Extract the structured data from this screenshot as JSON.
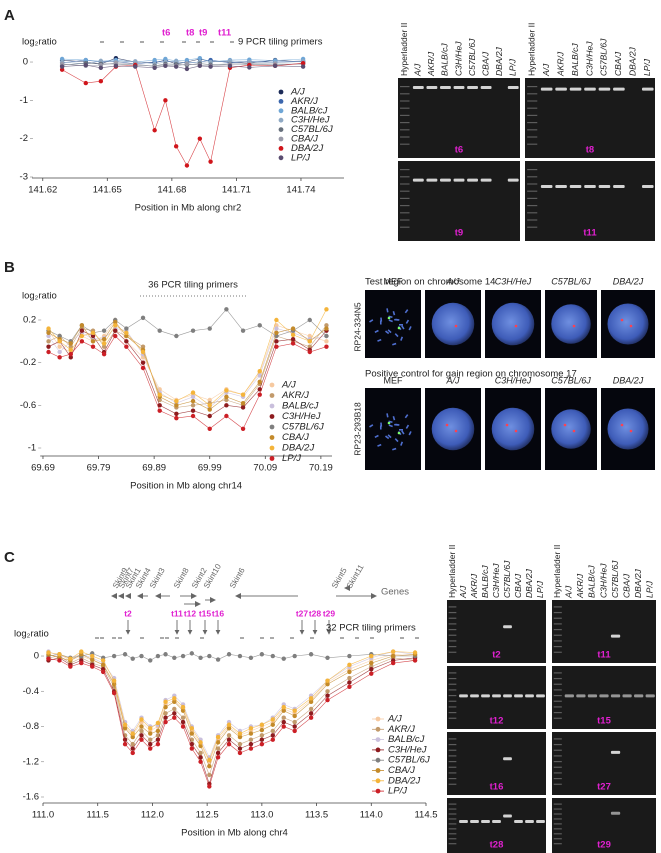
{
  "panels": [
    "A",
    "B",
    "C"
  ],
  "chart_data": [
    {
      "type": "line",
      "x_label": "Position in Mb along chr2",
      "y_label": "log₂ratio",
      "primer_label": "9 PCR tiling primers",
      "primer_names": [
        "t6",
        "t8",
        "t9",
        "t11"
      ],
      "x": [
        141.629,
        141.64,
        141.647,
        141.654,
        141.663,
        141.672,
        141.677,
        141.682,
        141.687,
        141.693,
        141.698,
        141.707,
        141.716,
        141.728,
        141.741
      ],
      "series": [
        {
          "name": "A/J",
          "color": "#1b2a57",
          "values": [
            0.05,
            0.0,
            -0.05,
            0.1,
            0.0,
            -0.02,
            0.05,
            -0.05,
            0.0,
            0.08,
            0.02,
            0.0,
            -0.03,
            0.05,
            0.0
          ]
        },
        {
          "name": "AKR/J",
          "color": "#3b66ad",
          "values": [
            -0.02,
            0.05,
            0.0,
            0.02,
            -0.05,
            0.0,
            0.03,
            0.0,
            -0.02,
            0.0,
            0.05,
            -0.02,
            0.02,
            0.0,
            0.03
          ]
        },
        {
          "name": "BALB/cJ",
          "color": "#6fa6d6",
          "values": [
            0.08,
            0.05,
            0.02,
            0.05,
            0.0,
            0.05,
            0.08,
            0.03,
            0.05,
            0.1,
            0.0,
            0.05,
            0.06,
            0.04,
            0.08
          ]
        },
        {
          "name": "C3H/HeJ",
          "color": "#8fa9c4",
          "values": [
            0.0,
            -0.05,
            0.03,
            0.0,
            0.02,
            -0.05,
            0.0,
            0.02,
            -0.03,
            0.0,
            0.0,
            0.03,
            0.0,
            -0.02,
            0.02
          ]
        },
        {
          "name": "C57BL/6J",
          "color": "#67707c",
          "values": [
            -0.08,
            -0.03,
            -0.05,
            -0.05,
            -0.08,
            -0.1,
            -0.05,
            -0.06,
            -0.08,
            -0.04,
            -0.07,
            -0.05,
            -0.06,
            -0.08,
            -0.04
          ]
        },
        {
          "name": "CBA/J",
          "color": "#9a9aa8",
          "values": [
            -0.05,
            -0.1,
            -0.08,
            -0.02,
            -0.05,
            -0.12,
            -0.08,
            -0.1,
            -0.05,
            -0.08,
            -0.1,
            -0.06,
            -0.04,
            -0.05,
            -0.06
          ]
        },
        {
          "name": "DBA/2J",
          "color": "#d0151b",
          "values": [
            -0.2,
            -0.55,
            -0.5,
            -0.12,
            -0.08,
            -1.78,
            -1.0,
            -2.2,
            -2.7,
            -2.0,
            -2.6,
            -0.15,
            -0.08,
            -0.1,
            -0.03
          ]
        },
        {
          "name": "LP/J",
          "color": "#5a4d70",
          "values": [
            -0.12,
            -0.08,
            -0.15,
            -0.1,
            -0.12,
            -0.15,
            -0.1,
            -0.12,
            -0.18,
            -0.1,
            -0.12,
            -0.1,
            -0.14,
            -0.1,
            -0.12
          ]
        }
      ],
      "xlim": [
        141.615,
        141.76
      ],
      "xticks": [
        141.62,
        141.65,
        141.68,
        141.71,
        141.74
      ],
      "ylim": [
        -3,
        0.4
      ],
      "yticks": [
        0,
        -1,
        -2,
        -3
      ],
      "grid": false,
      "legend": "right"
    },
    {
      "type": "line",
      "x_label": "Position in Mb along chr14",
      "y_label": "log₂ratio",
      "primer_label": "36 PCR tiling primers",
      "x": [
        69.7,
        69.72,
        69.74,
        69.76,
        69.78,
        69.8,
        69.82,
        69.84,
        69.87,
        69.9,
        69.93,
        69.96,
        69.99,
        70.02,
        70.05,
        70.08,
        70.11,
        70.14,
        70.17,
        70.2
      ],
      "series": [
        {
          "name": "A/J",
          "color": "#f6c9a0",
          "values": [
            0.1,
            -0.05,
            -0.1,
            0.05,
            0.0,
            0.05,
            0.2,
            0.0,
            -0.15,
            -0.45,
            -0.55,
            -0.5,
            -0.55,
            -0.45,
            -0.5,
            -0.3,
            0.15,
            0.1,
            0.05,
            0.0
          ]
        },
        {
          "name": "AKR/J",
          "color": "#c29a6b",
          "values": [
            0.0,
            0.05,
            -0.05,
            0.12,
            0.1,
            -0.05,
            0.1,
            0.05,
            -0.05,
            -0.55,
            -0.62,
            -0.6,
            -0.58,
            -0.55,
            -0.6,
            -0.4,
            0.05,
            0.0,
            -0.05,
            0.15
          ]
        },
        {
          "name": "BALB/cJ",
          "color": "#c9bfdc",
          "values": [
            0.05,
            -0.1,
            0.0,
            0.08,
            0.02,
            0.03,
            0.12,
            0.1,
            -0.12,
            -0.48,
            -0.58,
            -0.52,
            -0.62,
            -0.48,
            -0.52,
            -0.32,
            0.12,
            0.08,
            0.02,
            0.05
          ]
        },
        {
          "name": "C3H/HeJ",
          "color": "#8e1b1e",
          "values": [
            -0.05,
            0.0,
            -0.15,
            0.1,
            0.05,
            -0.1,
            0.1,
            0.0,
            -0.2,
            -0.6,
            -0.68,
            -0.65,
            -0.7,
            -0.6,
            -0.62,
            -0.45,
            0.0,
            0.02,
            -0.08,
            0.1
          ]
        },
        {
          "name": "C57BL/6J",
          "color": "#7f7f7f",
          "values": [
            0.1,
            0.05,
            0.0,
            0.15,
            0.08,
            0.1,
            0.2,
            0.12,
            0.22,
            0.1,
            0.05,
            0.1,
            0.12,
            0.3,
            0.1,
            0.15,
            0.05,
            0.1,
            0.2,
            0.05
          ]
        },
        {
          "name": "CBA/J",
          "color": "#c38a2a",
          "values": [
            0.08,
            0.02,
            -0.02,
            0.15,
            0.0,
            0.02,
            0.18,
            0.05,
            -0.08,
            -0.52,
            -0.6,
            -0.56,
            -0.64,
            -0.52,
            -0.58,
            -0.38,
            0.08,
            0.12,
            0.0,
            0.12
          ]
        },
        {
          "name": "DBA/2J",
          "color": "#f4b43a",
          "values": [
            0.12,
            0.0,
            -0.08,
            0.05,
            0.08,
            -0.02,
            0.15,
            0.08,
            -0.1,
            -0.5,
            -0.56,
            -0.48,
            -0.6,
            -0.46,
            -0.5,
            -0.28,
            0.2,
            0.06,
            0.0,
            0.3
          ]
        },
        {
          "name": "LP/J",
          "color": "#cc1f26",
          "values": [
            -0.1,
            -0.15,
            -0.12,
            0.0,
            -0.05,
            -0.12,
            0.05,
            -0.05,
            -0.25,
            -0.65,
            -0.72,
            -0.7,
            -0.82,
            -0.7,
            -0.82,
            -0.5,
            -0.05,
            -0.02,
            -0.1,
            -0.05
          ]
        }
      ],
      "xlim": [
        69.685,
        70.21
      ],
      "xticks": [
        69.69,
        69.79,
        69.89,
        69.99,
        70.09,
        70.19
      ],
      "ylim": [
        -1,
        0.35
      ],
      "yticks": [
        0.2,
        -0.2,
        -0.6,
        -1
      ],
      "grid": false,
      "legend": "right"
    },
    {
      "type": "line",
      "x_label": "Position in Mb along chr4",
      "y_label": "log₂ratio",
      "genes_label": "Genes",
      "genes": [
        "Skint9",
        "Skint7",
        "Skint1",
        "Skint4",
        "Skint3",
        "Skint8",
        "Skint2",
        "Skint10",
        "Skint6",
        "Skint5",
        "Skint11"
      ],
      "primer_label": "32 PCR tiling primers",
      "primer_names": [
        "t2",
        "t11",
        "t12",
        "t15",
        "t16",
        "t27",
        "t28",
        "t29"
      ],
      "x": [
        111.05,
        111.15,
        111.25,
        111.35,
        111.45,
        111.55,
        111.65,
        111.75,
        111.82,
        111.9,
        111.98,
        112.05,
        112.12,
        112.2,
        112.28,
        112.36,
        112.44,
        112.52,
        112.6,
        112.7,
        112.8,
        112.9,
        113.0,
        113.1,
        113.2,
        113.3,
        113.45,
        113.6,
        113.8,
        114.0,
        114.2,
        114.4
      ],
      "series": [
        {
          "name": "A/J",
          "color": "#f6c9a0",
          "values": [
            0,
            0.02,
            -0.05,
            0,
            -0.05,
            -0.1,
            -0.3,
            -0.8,
            -0.9,
            -0.75,
            -0.85,
            -0.8,
            -0.55,
            -0.5,
            -0.6,
            -0.85,
            -1.0,
            -1.2,
            -0.95,
            -0.8,
            -0.9,
            -0.85,
            -0.8,
            -0.75,
            -0.6,
            -0.65,
            -0.5,
            -0.3,
            -0.15,
            -0.05,
            0.02,
            0
          ]
        },
        {
          "name": "AKR/J",
          "color": "#c29a6b",
          "values": [
            -0.02,
            0,
            -0.08,
            -0.02,
            -0.08,
            -0.12,
            -0.35,
            -0.9,
            -1.0,
            -0.85,
            -0.95,
            -0.9,
            -0.65,
            -0.6,
            -0.7,
            -0.95,
            -1.1,
            -1.35,
            -1.05,
            -0.9,
            -1.0,
            -0.95,
            -0.9,
            -0.85,
            -0.7,
            -0.75,
            -0.6,
            -0.4,
            -0.25,
            -0.12,
            -0.02,
            -0.05
          ]
        },
        {
          "name": "BALB/cJ",
          "color": "#c9bfdc",
          "values": [
            0.05,
            0,
            -0.02,
            0.02,
            -0.02,
            -0.08,
            -0.25,
            -0.75,
            -0.85,
            -0.7,
            -0.8,
            -0.78,
            -0.5,
            -0.45,
            -0.55,
            -0.8,
            -0.95,
            -1.15,
            -0.9,
            -0.75,
            -0.85,
            -0.8,
            -0.78,
            -0.7,
            -0.55,
            -0.6,
            -0.45,
            -0.28,
            -0.12,
            -0.02,
            0.05,
            0.02
          ]
        },
        {
          "name": "C3H/HeJ",
          "color": "#8e1b1e",
          "values": [
            -0.05,
            -0.02,
            -0.1,
            -0.05,
            -0.1,
            -0.15,
            -0.4,
            -0.95,
            -1.05,
            -0.9,
            -1.0,
            -0.95,
            -0.7,
            -0.65,
            -0.75,
            -1.0,
            -1.15,
            -1.45,
            -1.1,
            -0.95,
            -1.05,
            -1.0,
            -0.95,
            -0.9,
            -0.75,
            -0.8,
            -0.65,
            -0.45,
            -0.3,
            -0.15,
            -0.05,
            -0.02
          ]
        },
        {
          "name": "C57BL/6J",
          "color": "#7f7f7f",
          "values": [
            0,
            0.02,
            -0.02,
            0,
            0.03,
            -0.02,
            0,
            0.02,
            -0.03,
            0,
            -0.05,
            0,
            0.02,
            -0.02,
            0,
            0.03,
            -0.02,
            0,
            -0.04,
            0.02,
            0,
            -0.02,
            0.02,
            0,
            -0.03,
            0,
            0.02,
            -0.02,
            0,
            0.02,
            0,
            0
          ]
        },
        {
          "name": "CBA/J",
          "color": "#c38a2a",
          "values": [
            0.02,
            -0.02,
            -0.05,
            0.02,
            -0.04,
            -0.1,
            -0.32,
            -0.82,
            -0.92,
            -0.8,
            -0.88,
            -0.85,
            -0.58,
            -0.52,
            -0.62,
            -0.88,
            -1.02,
            -1.25,
            -0.98,
            -0.82,
            -0.92,
            -0.88,
            -0.84,
            -0.78,
            -0.62,
            -0.68,
            -0.52,
            -0.32,
            -0.18,
            -0.08,
            0,
            0.02
          ]
        },
        {
          "name": "DBA/2J",
          "color": "#f4b43a",
          "values": [
            0.04,
            0.02,
            -0.03,
            0.05,
            0,
            -0.05,
            -0.28,
            -0.78,
            -0.88,
            -0.72,
            -0.82,
            -0.76,
            -0.52,
            -0.48,
            -0.58,
            -0.82,
            -0.98,
            -1.18,
            -0.92,
            -0.78,
            -0.88,
            -0.82,
            -0.78,
            -0.72,
            -0.58,
            -0.62,
            -0.48,
            -0.28,
            -0.1,
            0,
            0.05,
            0.04
          ]
        },
        {
          "name": "LP/J",
          "color": "#cc1f26",
          "values": [
            -0.03,
            -0.05,
            -0.12,
            -0.08,
            -0.12,
            -0.18,
            -0.42,
            -1.0,
            -1.1,
            -0.95,
            -1.05,
            -1.0,
            -0.75,
            -0.7,
            -0.8,
            -1.05,
            -1.2,
            -1.48,
            -1.15,
            -1.0,
            -1.1,
            -1.05,
            -1.0,
            -0.95,
            -0.8,
            -0.85,
            -0.7,
            -0.5,
            -0.35,
            -0.2,
            -0.08,
            -0.05
          ]
        }
      ],
      "xlim": [
        111,
        114.5
      ],
      "xticks": [
        {
          "value": 111,
          "label": "111.0"
        },
        111.5,
        {
          "value": 112,
          "label": "112.0"
        },
        112.5,
        {
          "value": 113,
          "label": "113.0"
        },
        113.5,
        {
          "value": 114,
          "label": "114.0"
        },
        114.5
      ],
      "ylim": [
        -1.6,
        0.2
      ],
      "yticks": [
        0,
        -0.4,
        -0.8,
        -1.2,
        -1.6
      ],
      "grid": false,
      "legend": "right"
    }
  ],
  "gels": {
    "lanes": [
      "Hyperladder II",
      "A/J",
      "AKR/J",
      "BALB/cJ",
      "C3H/HeJ",
      "C57BL/6J",
      "CBA/J",
      "DBA/2J",
      "LP/J"
    ],
    "panel_a": [
      "t6",
      "t8",
      "t9",
      "t11"
    ],
    "panel_c": [
      "t2",
      "t11",
      "t12",
      "t15",
      "t16",
      "t27",
      "t28",
      "t29"
    ]
  },
  "fish": {
    "columns": [
      "MEF",
      "A/J",
      "C3H/HeJ",
      "C57BL/6J",
      "DBA/2J"
    ],
    "rows": [
      {
        "title": "Test region on chromosome 14",
        "probe": "RP24-334N5"
      },
      {
        "title": "Positive control for gain region on chromosome 17",
        "probe": "RP23-293B18"
      }
    ]
  }
}
